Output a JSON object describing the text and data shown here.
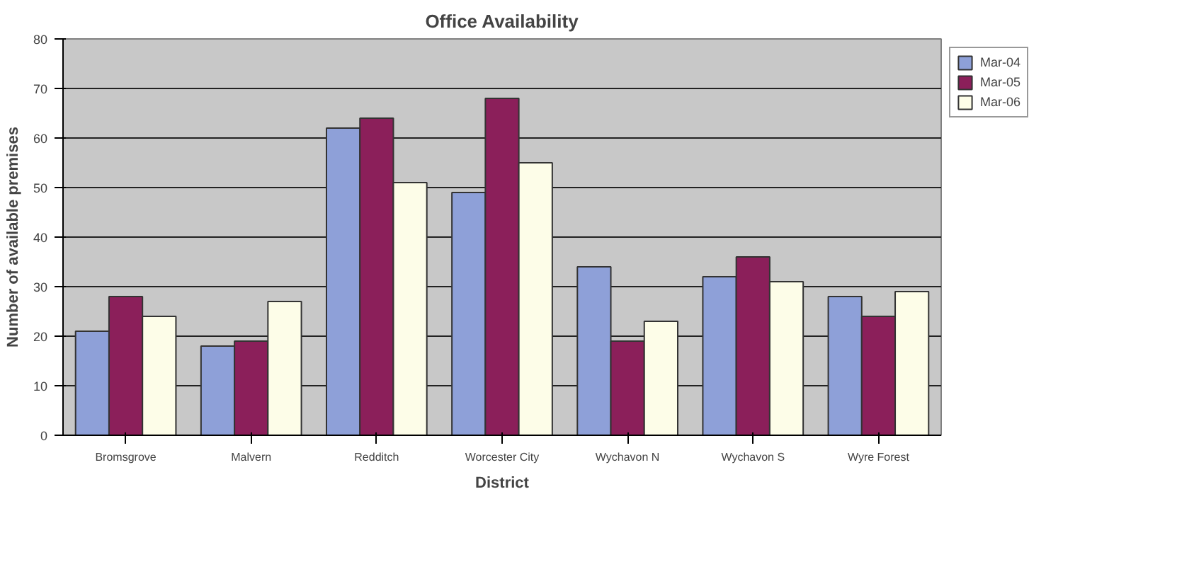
{
  "chart_data": {
    "type": "bar",
    "title": "Office Availability",
    "xlabel": "District",
    "ylabel": "Number of available premises",
    "categories": [
      "Bromsgrove",
      "Malvern",
      "Redditch",
      "Worcester City",
      "Wychavon N",
      "Wychavon S",
      "Wyre Forest"
    ],
    "series": [
      {
        "name": "Mar-04",
        "color": "#8ea0d8",
        "values": [
          21,
          18,
          62,
          49,
          34,
          32,
          28
        ]
      },
      {
        "name": "Mar-05",
        "color": "#8b1f5a",
        "values": [
          28,
          19,
          64,
          68,
          19,
          36,
          24
        ]
      },
      {
        "name": "Mar-06",
        "color": "#fdfde8",
        "values": [
          24,
          27,
          51,
          55,
          23,
          31,
          29
        ]
      }
    ],
    "ylim": [
      0,
      80
    ],
    "yticks": [
      0,
      10,
      20,
      30,
      40,
      50,
      60,
      70,
      80
    ],
    "grid": "y",
    "legend": "right"
  }
}
